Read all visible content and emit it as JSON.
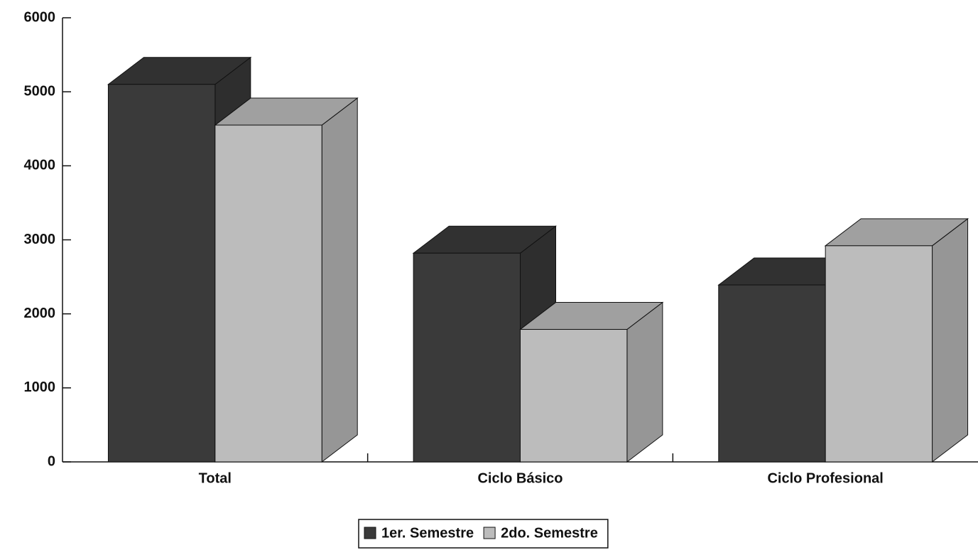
{
  "chart_data": {
    "type": "bar3d",
    "categories": [
      "Total",
      "Ciclo Básico",
      "Ciclo Profesional"
    ],
    "series": [
      {
        "name": "1er. Semestre",
        "color": "#3a3a3a",
        "values": [
          5100,
          2820,
          2390
        ]
      },
      {
        "name": "2do. Semestre",
        "color": "#bcbcbc",
        "values": [
          4550,
          1790,
          2920
        ]
      }
    ],
    "ylim": [
      0,
      6000
    ],
    "yticks": [
      0,
      1000,
      2000,
      3000,
      4000,
      5000,
      6000
    ],
    "legend": "bottom"
  }
}
